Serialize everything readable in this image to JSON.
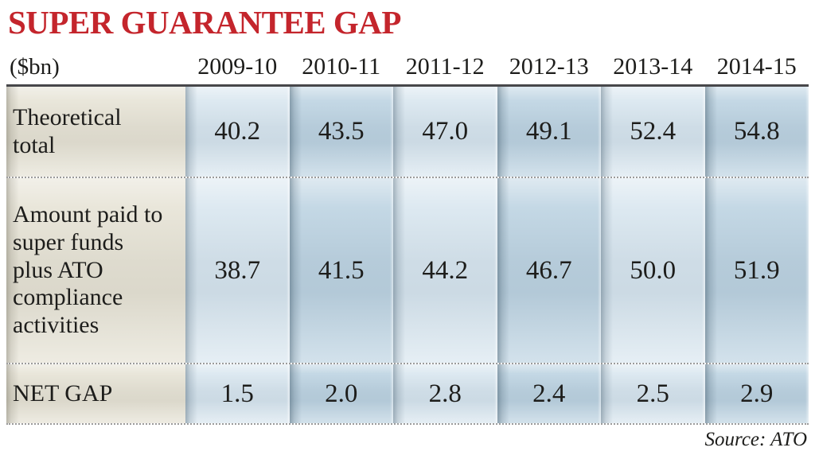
{
  "header": {
    "title": "SUPER GUARANTEE GAP",
    "unit_label": "($bn)",
    "columns": [
      "2009-10",
      "2010-11",
      "2011-12",
      "2012-13",
      "2013-14",
      "2014-15"
    ]
  },
  "table": {
    "rows": [
      {
        "label": "Theoretical total",
        "values": [
          "40.2",
          "43.5",
          "47.0",
          "49.1",
          "52.4",
          "54.8"
        ]
      },
      {
        "label": "Amount paid to super funds plus ATO compliance activities",
        "values": [
          "38.7",
          "41.5",
          "44.2",
          "46.7",
          "50.0",
          "51.9"
        ]
      },
      {
        "label": "NET GAP",
        "values": [
          "1.5",
          "2.0",
          "2.8",
          "2.4",
          "2.5",
          "2.9"
        ]
      }
    ]
  },
  "footer": {
    "source": "Source: ATO"
  },
  "colors": {
    "title_red": "#c4252c",
    "label_column_beige": "#e9e6da",
    "column_light_blue": "#dde9f1",
    "column_dark_blue": "#c4d8e5",
    "body_text": "#1d1d1b",
    "top_rule": "#47474a"
  },
  "chart_data": {
    "type": "table",
    "title": "SUPER GUARANTEE GAP",
    "unit": "$bn",
    "categories": [
      "2009-10",
      "2010-11",
      "2011-12",
      "2012-13",
      "2013-14",
      "2014-15"
    ],
    "series": [
      {
        "name": "Theoretical total",
        "values": [
          40.2,
          43.5,
          47.0,
          49.1,
          52.4,
          54.8
        ]
      },
      {
        "name": "Amount paid to super funds plus ATO compliance activities",
        "values": [
          38.7,
          41.5,
          44.2,
          46.7,
          50.0,
          51.9
        ]
      },
      {
        "name": "NET GAP",
        "values": [
          1.5,
          2.0,
          2.8,
          2.4,
          2.5,
          2.9
        ]
      }
    ],
    "source": "ATO",
    "legend_position": "none",
    "grid": false
  }
}
